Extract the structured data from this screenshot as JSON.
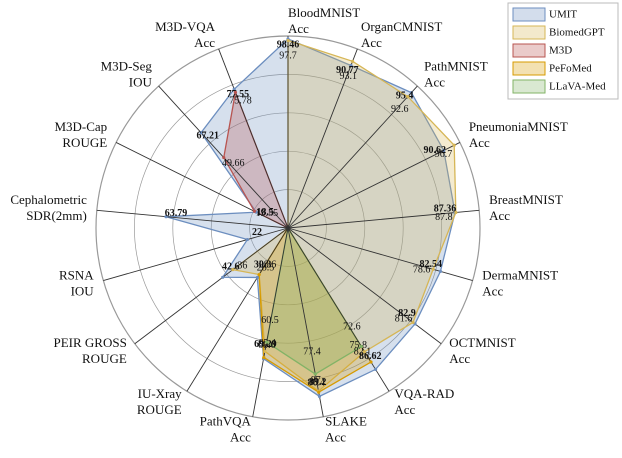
{
  "chart_data": {
    "type": "radar",
    "categories": [
      [
        "BloodMNIST",
        "Acc"
      ],
      [
        "OrganCMNIST",
        "Acc"
      ],
      [
        "PathMNIST",
        "Acc"
      ],
      [
        "PneumoniaMNIST",
        "Acc"
      ],
      [
        "BreastMNIST",
        "Acc"
      ],
      [
        "DermaMNIST",
        "Acc"
      ],
      [
        "OCTMNIST",
        "Acc"
      ],
      [
        "VQA-RAD",
        "Acc"
      ],
      [
        "SLAKE",
        "Acc"
      ],
      [
        "PathVQA",
        "Acc"
      ],
      [
        "IU-Xray",
        "ROUGE"
      ],
      [
        "PEIR GROSS",
        "ROUGE"
      ],
      [
        "RSNA",
        "IOU"
      ],
      [
        "Cephalometric",
        "SDR(2mm)"
      ],
      [
        "M3D-Cap",
        "ROUGE"
      ],
      [
        "M3D-Seg",
        "IOU"
      ],
      [
        "M3D-VQA",
        "Acc"
      ]
    ],
    "ylim": [
      0,
      100
    ],
    "series": [
      {
        "name": "UMIT",
        "color": "#6c8ebf",
        "values": [
          98.46,
          90.77,
          95.4,
          90.62,
          87.36,
          82.54,
          82.9,
          86.62,
          89.2,
          69.29,
          30.3,
          42.6,
          22,
          63.79,
          18.5,
          67.21,
          77.55
        ]
      },
      {
        "name": "BiomedGPT",
        "color": "#d6b656",
        "values": [
          97.7,
          93.1,
          92.6,
          96.7,
          87.8,
          78.6,
          81.6,
          75.8,
          86.4,
          65.4,
          28.5,
          36,
          null,
          null,
          null,
          null,
          null
        ]
      },
      {
        "name": "M3D",
        "color": "#b85450",
        "values": [
          null,
          null,
          null,
          null,
          null,
          null,
          null,
          null,
          null,
          null,
          null,
          null,
          null,
          null,
          19.55,
          49.66,
          75.78
        ]
      },
      {
        "name": "PeFoMed",
        "color": "#d79b00",
        "values": [
          null,
          null,
          null,
          null,
          null,
          null,
          null,
          82.1,
          87,
          68.6,
          28.6,
          null,
          null,
          null,
          null,
          null,
          null
        ]
      },
      {
        "name": "LLaVA-Med",
        "color": "#82b366",
        "values": [
          null,
          null,
          null,
          null,
          null,
          null,
          null,
          72.6,
          77.4,
          60.5,
          null,
          null,
          null,
          null,
          null,
          null,
          null
        ]
      }
    ]
  }
}
